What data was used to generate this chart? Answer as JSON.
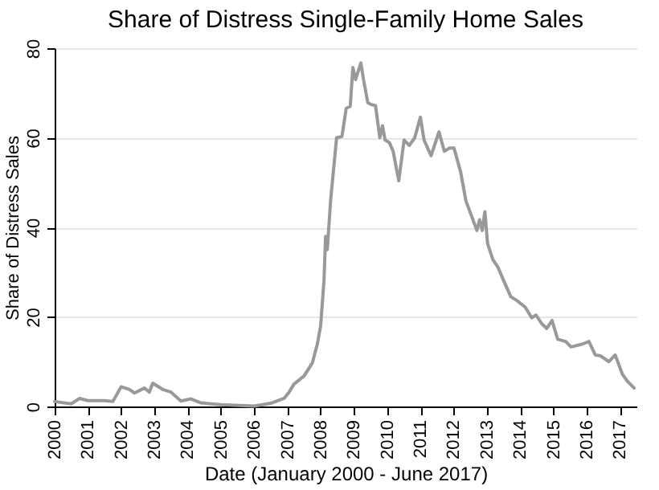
{
  "chart_data": {
    "type": "line",
    "title": "Share of Distress Single-Family Home Sales",
    "xlabel": "Date (January 2000 - June 2017)",
    "ylabel": "Share of Distress Sales",
    "x": [
      2000.0,
      2000.5,
      2000.75,
      2001.0,
      2001.5,
      2001.75,
      2002.0,
      2002.25,
      2002.4,
      2002.7,
      2002.85,
      2002.95,
      2003.25,
      2003.5,
      2003.8,
      2004.1,
      2004.4,
      2005.0,
      2006.0,
      2006.5,
      2006.9,
      2007.05,
      2007.2,
      2007.5,
      2007.75,
      2007.9,
      2008.0,
      2008.1,
      2008.15,
      2008.2,
      2008.3,
      2008.48,
      2008.64,
      2008.77,
      2008.89,
      2008.97,
      2009.05,
      2009.21,
      2009.29,
      2009.42,
      2009.53,
      2009.65,
      2009.78,
      2009.86,
      2009.94,
      2010.07,
      2010.18,
      2010.35,
      2010.51,
      2010.67,
      2010.83,
      2011.0,
      2011.11,
      2011.32,
      2011.56,
      2011.72,
      2011.88,
      2012.01,
      2012.21,
      2012.37,
      2012.61,
      2012.7,
      2012.78,
      2012.86,
      2012.94,
      2013.02,
      2013.18,
      2013.34,
      2013.51,
      2013.72,
      2013.91,
      2014.15,
      2014.35,
      2014.48,
      2014.64,
      2014.8,
      2014.96,
      2015.13,
      2015.37,
      2015.53,
      2015.86,
      2016.07,
      2016.26,
      2016.42,
      2016.67,
      2016.86,
      2017.07,
      2017.23,
      2017.43
    ],
    "series": [
      {
        "color": "#999999",
        "values": [
          1.1,
          0.6,
          1.8,
          1.3,
          1.3,
          1.1,
          4.4,
          3.8,
          3.0,
          4.1,
          3.2,
          5.2,
          3.8,
          3.2,
          1.2,
          1.7,
          0.8,
          0.4,
          0.1,
          0.7,
          1.8,
          3.2,
          5.0,
          6.8,
          9.7,
          13.9,
          18,
          28,
          38,
          35,
          46,
          60,
          60.3,
          66.6,
          67,
          75.7,
          73,
          76.7,
          73,
          67.8,
          67.4,
          67.2,
          60,
          62.7,
          59.5,
          58.9,
          57,
          50.4,
          59.5,
          58.3,
          60,
          64.6,
          59.5,
          56,
          61.3,
          57,
          57.7,
          57.7,
          52.4,
          45.9,
          41.1,
          39.3,
          41.7,
          39.3,
          43.5,
          36.4,
          32.8,
          31,
          28,
          24.5,
          23.6,
          22.2,
          19.8,
          20.4,
          18.6,
          17.4,
          19.2,
          15,
          14.5,
          13.3,
          13.9,
          14.5,
          11.5,
          11.3,
          10,
          11.5,
          7.3,
          5.6,
          4.1
        ]
      }
    ],
    "xlim": [
      2000,
      2017.5
    ],
    "xticks": [
      2000,
      2001,
      2002,
      2003,
      2004,
      2005,
      2006,
      2007,
      2008,
      2009,
      2010,
      2011,
      2012,
      2013,
      2014,
      2015,
      2016,
      2017
    ],
    "ylim": [
      0,
      80
    ],
    "yticks": [
      0,
      20,
      40,
      60,
      80
    ],
    "grid": "y",
    "line_style": "solid"
  }
}
